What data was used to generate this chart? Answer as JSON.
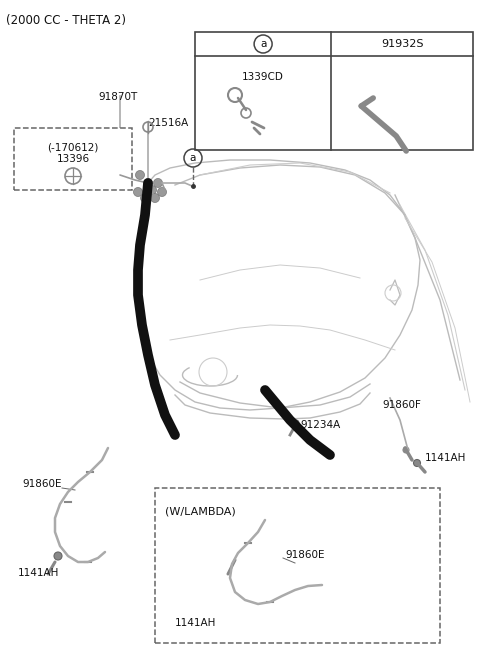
{
  "bg_color": "#ffffff",
  "line_color": "#aaaaaa",
  "dark_color": "#111111",
  "gray_color": "#888888",
  "labels": {
    "top_left": "(2000 CC - THETA 2)",
    "91870T": "91870T",
    "21516A": "21516A",
    "13396_line1": "(-170612)",
    "13396_line2": "13396",
    "91860F": "91860F",
    "91860E_left": "91860E",
    "91234A": "91234A",
    "1141AH_left": "1141AH",
    "1141AH_right": "1141AH",
    "91860E_box": "91860E",
    "1141AH_box": "1141AH",
    "w_lambda": "(W/LAMBDA)",
    "1339CD": "1339CD",
    "91932S": "91932S",
    "circle_a": "a"
  }
}
